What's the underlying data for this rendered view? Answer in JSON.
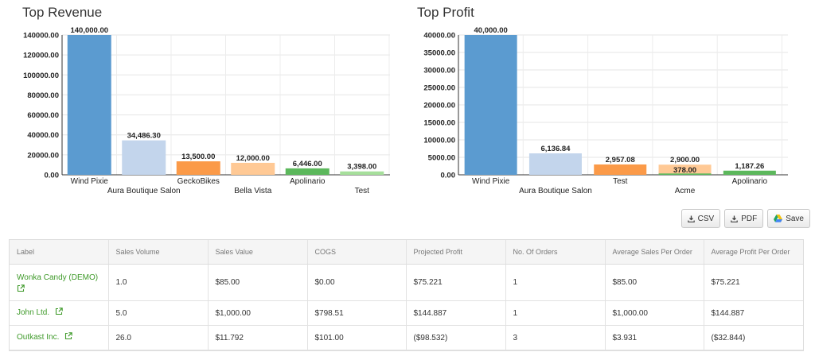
{
  "charts": {
    "revenue_title": "Top Revenue",
    "profit_title": "Top Profit"
  },
  "chart_data": [
    {
      "type": "bar",
      "title": "Top Revenue",
      "categories": [
        "Wind Pixie",
        "Aura Boutique Salon",
        "GeckoBikes",
        "Bella Vista",
        "Apolinario",
        "Test"
      ],
      "values": [
        140000,
        34486.3,
        13500,
        12000,
        6446,
        3398
      ],
      "value_labels": [
        "140,000.00",
        "34,486.30",
        "13,500.00",
        "12,000.00",
        "6,446.00",
        "3,398.00"
      ],
      "colors": [
        "#5b9bd0",
        "#c3d5ec",
        "#fb9a48",
        "#ffc995",
        "#5cb85c",
        "#a6df9b"
      ],
      "ylim": [
        0,
        140000
      ],
      "yticks": [
        "0.00",
        "20000.00",
        "40000.00",
        "60000.00",
        "80000.00",
        "100000.00",
        "120000.00",
        "140000.00"
      ],
      "ytick_values": [
        0,
        20000,
        40000,
        60000,
        80000,
        100000,
        120000,
        140000
      ],
      "grid": true
    },
    {
      "type": "bar",
      "title": "Top Profit",
      "categories": [
        "Wind Pixie",
        "Aura Boutique Salon",
        "Test",
        "Acme",
        "Apolinario"
      ],
      "values": [
        40000,
        6136.84,
        2957.08,
        2900,
        1187.26
      ],
      "value_labels": [
        "40,000.00",
        "6,136.84",
        "2,957.08",
        "2,900.00",
        "1,187.26"
      ],
      "colors": [
        "#5b9bd0",
        "#c3d5ec",
        "#fb9a48",
        "#ffc995",
        "#5cb85c"
      ],
      "overlay": {
        "category": "Acme",
        "value": 378,
        "label": "378.00",
        "color": "#5cb85c"
      },
      "ylim": [
        0,
        40000
      ],
      "yticks": [
        "0.00",
        "5000.00",
        "10000.00",
        "15000.00",
        "20000.00",
        "25000.00",
        "30000.00",
        "35000.00",
        "40000.00"
      ],
      "ytick_values": [
        0,
        5000,
        10000,
        15000,
        20000,
        25000,
        30000,
        35000,
        40000
      ],
      "grid": true
    }
  ],
  "toolbar": {
    "csv_label": "CSV",
    "pdf_label": "PDF",
    "save_label": "Save"
  },
  "table": {
    "headers": [
      "Label",
      "Sales Volume",
      "Sales Value",
      "COGS",
      "Projected Profit",
      "No. Of Orders",
      "Average Sales Per Order",
      "Average Profit Per Order"
    ],
    "rows": [
      {
        "label": "Wonka Candy (DEMO)",
        "cells": [
          "1.0",
          "$85.00",
          "$0.00",
          "$75.221",
          "1",
          "$85.00",
          "$75.221"
        ]
      },
      {
        "label": "John Ltd.",
        "cells": [
          "5.0",
          "$1,000.00",
          "$798.51",
          "$144.887",
          "1",
          "$1,000.00",
          "$144.887"
        ]
      },
      {
        "label": "Outkast Inc.",
        "cells": [
          "26.0",
          "$11.792",
          "$101.00",
          "($98.532)",
          "3",
          "$3.931",
          "($32.844)"
        ]
      }
    ]
  },
  "colors": {
    "link": "#3f9a2a",
    "header_bg": "#f5f5f5"
  },
  "icons": {
    "download": "download-icon",
    "drive": "google-drive-icon",
    "external": "external-link-icon"
  }
}
